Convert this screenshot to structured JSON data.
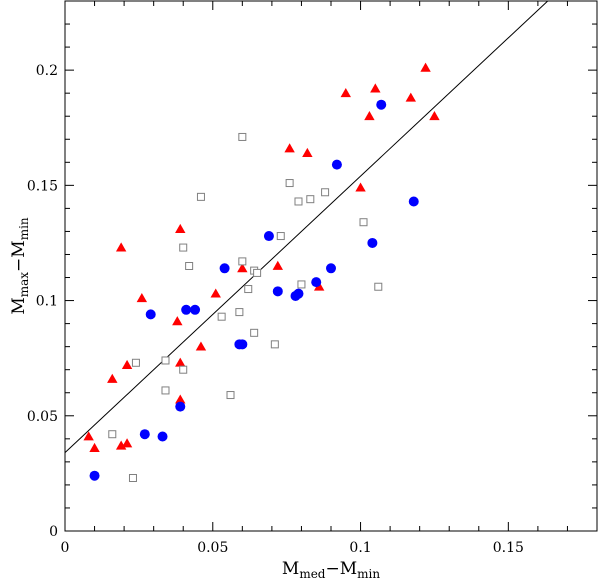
{
  "chart_data": {
    "type": "scatter",
    "title": "",
    "xlabel": {
      "parts": [
        "M",
        "med",
        "−M",
        "min"
      ]
    },
    "ylabel": {
      "parts": [
        "M",
        "max",
        "−M",
        "min"
      ]
    },
    "xlim": [
      0,
      0.18
    ],
    "ylim": [
      0,
      0.23
    ],
    "x_ticks": [
      0,
      0.05,
      0.1,
      0.15
    ],
    "x_tick_labels": [
      "0",
      "0.05",
      "0.1",
      "0.15"
    ],
    "y_ticks": [
      0,
      0.05,
      0.1,
      0.15,
      0.2
    ],
    "y_tick_labels": [
      "0",
      "0.05",
      "0.1",
      "0.15",
      "0.2"
    ],
    "grid": false,
    "colors": {
      "triangles": "#ff0000",
      "circles": "#0000ff",
      "squares": "#808080"
    },
    "fit_line": {
      "intercept": 0.034,
      "slope": 1.2
    },
    "series": [
      {
        "marker": "triangle",
        "color": "#ff0000",
        "points": [
          [
            0.008,
            0.041
          ],
          [
            0.01,
            0.036
          ],
          [
            0.016,
            0.066
          ],
          [
            0.019,
            0.123
          ],
          [
            0.019,
            0.037
          ],
          [
            0.021,
            0.038
          ],
          [
            0.021,
            0.072
          ],
          [
            0.026,
            0.101
          ],
          [
            0.038,
            0.091
          ],
          [
            0.039,
            0.131
          ],
          [
            0.039,
            0.073
          ],
          [
            0.039,
            0.057
          ],
          [
            0.046,
            0.08
          ],
          [
            0.051,
            0.103
          ],
          [
            0.06,
            0.114
          ],
          [
            0.072,
            0.115
          ],
          [
            0.076,
            0.166
          ],
          [
            0.082,
            0.164
          ],
          [
            0.086,
            0.106
          ],
          [
            0.095,
            0.19
          ],
          [
            0.1,
            0.149
          ],
          [
            0.103,
            0.18
          ],
          [
            0.105,
            0.192
          ],
          [
            0.117,
            0.188
          ],
          [
            0.122,
            0.201
          ],
          [
            0.125,
            0.18
          ]
        ]
      },
      {
        "marker": "circle",
        "color": "#0000ff",
        "points": [
          [
            0.01,
            0.024
          ],
          [
            0.027,
            0.042
          ],
          [
            0.029,
            0.094
          ],
          [
            0.033,
            0.041
          ],
          [
            0.039,
            0.054
          ],
          [
            0.041,
            0.096
          ],
          [
            0.044,
            0.096
          ],
          [
            0.054,
            0.114
          ],
          [
            0.059,
            0.081
          ],
          [
            0.06,
            0.081
          ],
          [
            0.069,
            0.128
          ],
          [
            0.072,
            0.104
          ],
          [
            0.078,
            0.102
          ],
          [
            0.079,
            0.103
          ],
          [
            0.085,
            0.108
          ],
          [
            0.09,
            0.114
          ],
          [
            0.092,
            0.159
          ],
          [
            0.104,
            0.125
          ],
          [
            0.107,
            0.185
          ],
          [
            0.118,
            0.143
          ]
        ]
      },
      {
        "marker": "square",
        "color": "#808080",
        "points": [
          [
            0.016,
            0.042
          ],
          [
            0.023,
            0.023
          ],
          [
            0.024,
            0.073
          ],
          [
            0.034,
            0.074
          ],
          [
            0.034,
            0.061
          ],
          [
            0.04,
            0.123
          ],
          [
            0.04,
            0.07
          ],
          [
            0.042,
            0.115
          ],
          [
            0.046,
            0.145
          ],
          [
            0.053,
            0.093
          ],
          [
            0.056,
            0.059
          ],
          [
            0.059,
            0.095
          ],
          [
            0.06,
            0.171
          ],
          [
            0.06,
            0.117
          ],
          [
            0.062,
            0.105
          ],
          [
            0.064,
            0.113
          ],
          [
            0.065,
            0.112
          ],
          [
            0.064,
            0.086
          ],
          [
            0.071,
            0.081
          ],
          [
            0.073,
            0.128
          ],
          [
            0.076,
            0.151
          ],
          [
            0.079,
            0.143
          ],
          [
            0.08,
            0.107
          ],
          [
            0.083,
            0.144
          ],
          [
            0.088,
            0.147
          ],
          [
            0.101,
            0.134
          ],
          [
            0.106,
            0.106
          ]
        ]
      }
    ]
  }
}
